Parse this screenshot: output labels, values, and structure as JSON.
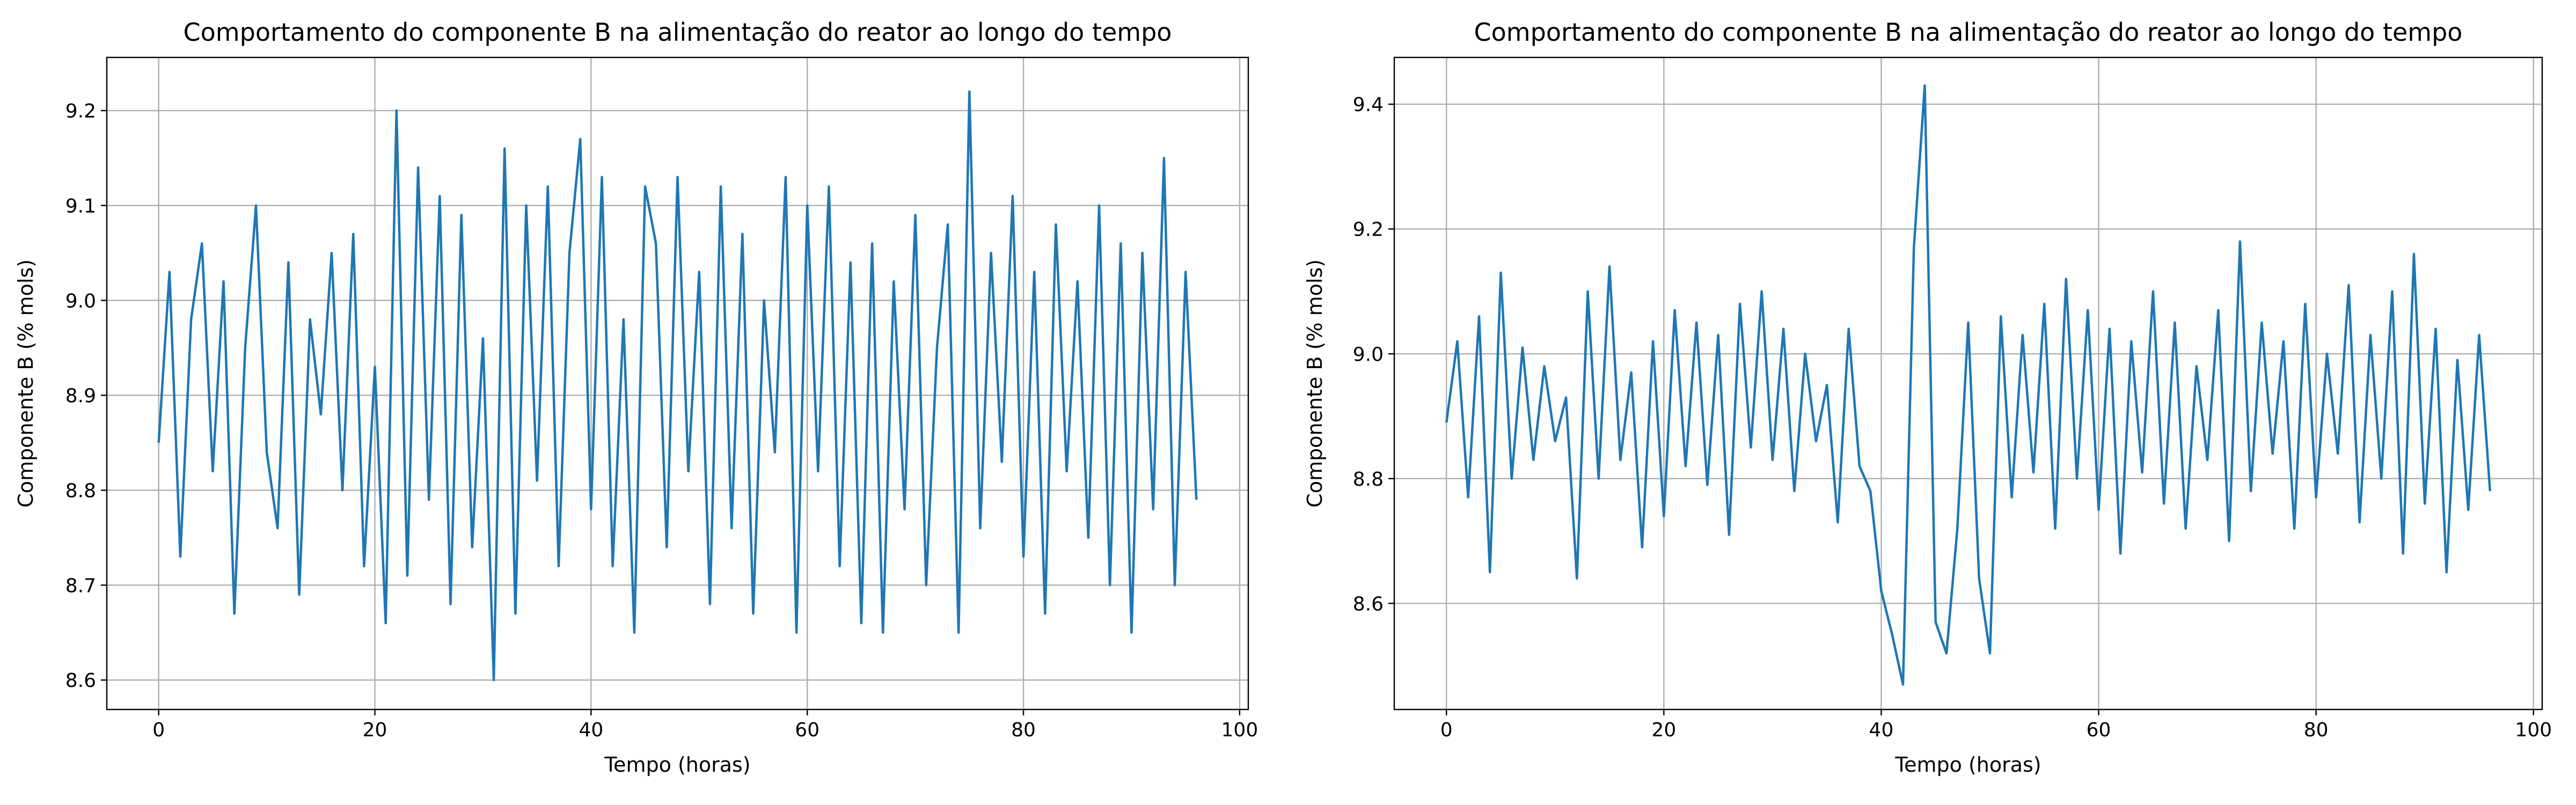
{
  "chart_data": [
    {
      "type": "line",
      "title": "Comportamento do componente B na alimentação do reator ao longo do tempo",
      "xlabel": "Tempo (horas)",
      "ylabel": "Componente B (% mols)",
      "color": "#1f77b4",
      "grid": true,
      "x": [
        0,
        1,
        2,
        3,
        4,
        5,
        6,
        7,
        8,
        9,
        10,
        11,
        12,
        13,
        14,
        15,
        16,
        17,
        18,
        19,
        20,
        21,
        22,
        23,
        24,
        25,
        26,
        27,
        28,
        29,
        30,
        31,
        32,
        33,
        34,
        35,
        36,
        37,
        38,
        39,
        40,
        41,
        42,
        43,
        44,
        45,
        46,
        47,
        48,
        49,
        50,
        51,
        52,
        53,
        54,
        55,
        56,
        57,
        58,
        59,
        60,
        61,
        62,
        63,
        64,
        65,
        66,
        67,
        68,
        69,
        70,
        71,
        72,
        73,
        74,
        75,
        76,
        77,
        78,
        79,
        80,
        81,
        82,
        83,
        84,
        85,
        86,
        87,
        88,
        89,
        90,
        91,
        92,
        93,
        94,
        95,
        96
      ],
      "values": [
        8.85,
        9.03,
        8.73,
        8.98,
        9.06,
        8.82,
        9.02,
        8.67,
        8.95,
        9.1,
        8.84,
        8.76,
        9.04,
        8.69,
        8.98,
        8.88,
        9.05,
        8.8,
        9.07,
        8.72,
        8.93,
        8.66,
        9.2,
        8.71,
        9.14,
        8.79,
        9.11,
        8.68,
        9.09,
        8.74,
        8.96,
        8.6,
        9.16,
        8.67,
        9.1,
        8.81,
        9.12,
        8.72,
        9.05,
        9.17,
        8.78,
        9.13,
        8.72,
        8.98,
        8.65,
        9.12,
        9.06,
        8.74,
        9.13,
        8.82,
        9.03,
        8.68,
        9.12,
        8.76,
        9.07,
        8.67,
        9.0,
        8.84,
        9.13,
        8.65,
        9.1,
        8.82,
        9.12,
        8.72,
        9.04,
        8.66,
        9.06,
        8.65,
        9.02,
        8.78,
        9.09,
        8.7,
        8.95,
        9.08,
        8.65,
        9.22,
        8.76,
        9.05,
        8.83,
        9.11,
        8.73,
        9.03,
        8.67,
        9.08,
        8.82,
        9.02,
        8.75,
        9.1,
        8.7,
        9.06,
        8.65,
        9.05,
        8.78,
        9.15,
        8.7,
        9.03,
        8.79
      ],
      "xlim": [
        -4.8,
        100.8
      ],
      "xticks": [
        0,
        20,
        40,
        60,
        80,
        100
      ],
      "ylim": [
        8.569,
        9.256
      ],
      "yticks": [
        8.6,
        8.7,
        8.8,
        8.9,
        {
          "value": 9,
          "label": "9.0"
        },
        9.1,
        9.2
      ]
    },
    {
      "type": "line",
      "title": "Comportamento do componente B na alimentação do reator ao longo do tempo",
      "xlabel": "Tempo (horas)",
      "ylabel": "Componente B (% mols)",
      "color": "#1f77b4",
      "grid": true,
      "x": [
        0,
        1,
        2,
        3,
        4,
        5,
        6,
        7,
        8,
        9,
        10,
        11,
        12,
        13,
        14,
        15,
        16,
        17,
        18,
        19,
        20,
        21,
        22,
        23,
        24,
        25,
        26,
        27,
        28,
        29,
        30,
        31,
        32,
        33,
        34,
        35,
        36,
        37,
        38,
        39,
        40,
        41,
        42,
        43,
        44,
        45,
        46,
        47,
        48,
        49,
        50,
        51,
        52,
        53,
        54,
        55,
        56,
        57,
        58,
        59,
        60,
        61,
        62,
        63,
        64,
        65,
        66,
        67,
        68,
        69,
        70,
        71,
        72,
        73,
        74,
        75,
        76,
        77,
        78,
        79,
        80,
        81,
        82,
        83,
        84,
        85,
        86,
        87,
        88,
        89,
        90,
        91,
        92,
        93,
        94,
        95,
        96
      ],
      "values": [
        8.89,
        9.02,
        8.77,
        9.06,
        8.65,
        9.13,
        8.8,
        9.01,
        8.83,
        8.98,
        8.86,
        8.93,
        8.64,
        9.1,
        8.8,
        9.14,
        8.83,
        8.97,
        8.69,
        9.02,
        8.74,
        9.07,
        8.82,
        9.05,
        8.79,
        9.03,
        8.71,
        9.08,
        8.85,
        9.1,
        8.83,
        9.04,
        8.78,
        9.0,
        8.86,
        8.95,
        8.73,
        9.04,
        8.82,
        8.78,
        8.62,
        8.55,
        8.47,
        9.17,
        9.43,
        8.57,
        8.52,
        8.72,
        9.05,
        8.64,
        8.52,
        9.06,
        8.77,
        9.03,
        8.81,
        9.08,
        8.72,
        9.12,
        8.8,
        9.07,
        8.75,
        9.04,
        8.68,
        9.02,
        8.81,
        9.1,
        8.76,
        9.05,
        8.72,
        8.98,
        8.83,
        9.07,
        8.7,
        9.18,
        8.78,
        9.05,
        8.84,
        9.02,
        8.72,
        9.08,
        8.77,
        9.0,
        8.84,
        9.11,
        8.73,
        9.03,
        8.8,
        9.1,
        8.68,
        9.16,
        8.76,
        9.04,
        8.65,
        8.99,
        8.75,
        9.03,
        8.78
      ],
      "xlim": [
        -4.8,
        100.8
      ],
      "xticks": [
        0,
        20,
        40,
        60,
        80,
        100
      ],
      "ylim": [
        8.43,
        9.475
      ],
      "yticks": [
        8.6,
        8.8,
        {
          "value": 9,
          "label": "9.0"
        },
        9.2,
        9.4
      ]
    }
  ]
}
